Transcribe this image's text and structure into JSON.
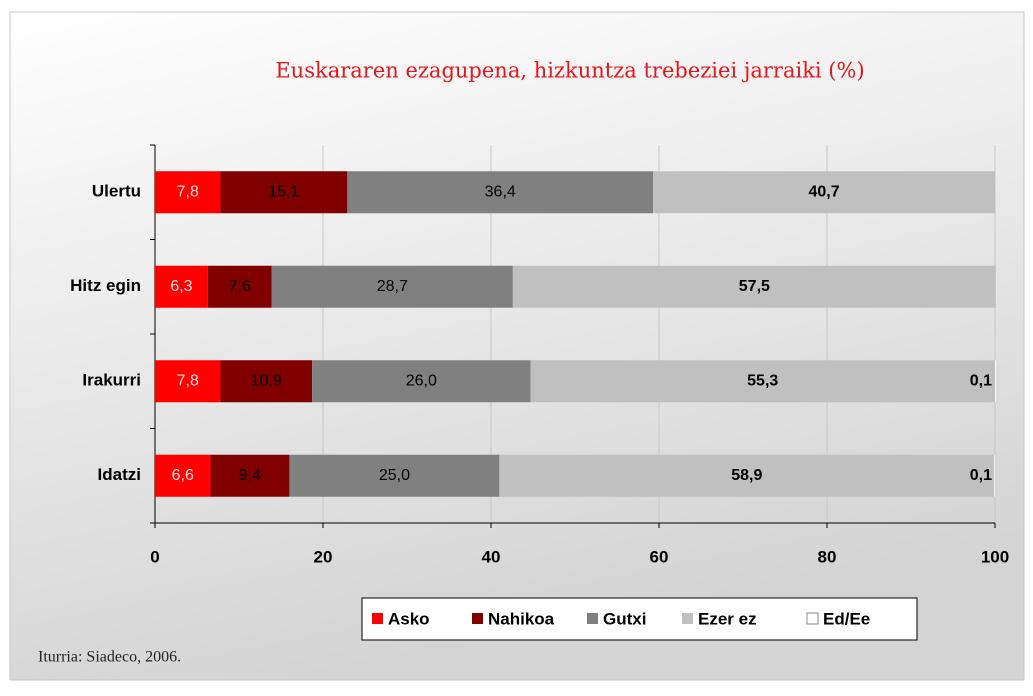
{
  "chart_data": {
    "type": "stacked-bar-horizontal",
    "title": "Euskararen ezagupena, hizkuntza trebeziei jarraiki (%)",
    "categories": [
      "Ulertu",
      "Hitz egin",
      "Irakurri",
      "Idatzi"
    ],
    "series": [
      {
        "name": "Asko",
        "color": "#ff0000",
        "values": [
          7.8,
          6.3,
          7.8,
          6.6
        ],
        "value_labels": [
          "7,8",
          "6,3",
          "7,8",
          "6,6"
        ]
      },
      {
        "name": "Nahikoa",
        "color": "#800000",
        "values": [
          15.1,
          7.6,
          10.9,
          9.4
        ],
        "value_labels": [
          "15,1",
          "7,6",
          "10,9",
          "9,4"
        ]
      },
      {
        "name": "Gutxi",
        "color": "#808080",
        "values": [
          36.4,
          28.7,
          26.0,
          25.0
        ],
        "value_labels": [
          "36,4",
          "28,7",
          "26,0",
          "25,0"
        ]
      },
      {
        "name": "Ezer ez",
        "color": "#c0c0c0",
        "values": [
          40.7,
          57.5,
          55.3,
          58.9
        ],
        "value_labels": [
          "40,7",
          "57,5",
          "55,3",
          "58,9"
        ]
      },
      {
        "name": "Ed/Ee",
        "color": "#ffffff",
        "values": [
          null,
          null,
          0.1,
          0.1
        ],
        "value_labels": [
          null,
          null,
          "0,1",
          "0,1"
        ]
      }
    ],
    "xlim": [
      0,
      100
    ],
    "xticks": [
      0,
      20,
      40,
      60,
      80,
      100
    ],
    "grid": true,
    "source": "Iturria: Siadeco, 2006."
  }
}
